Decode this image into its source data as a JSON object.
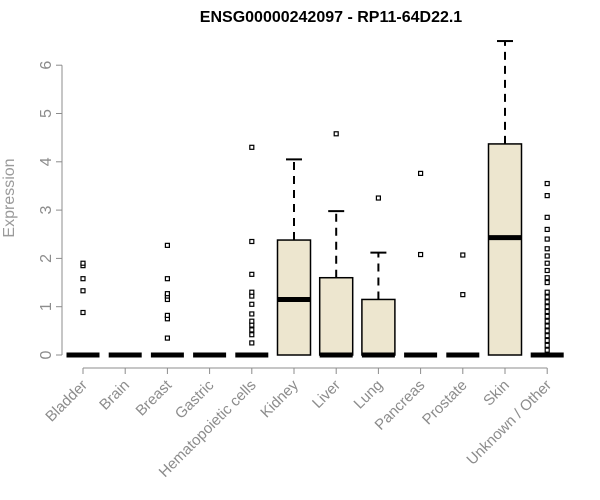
{
  "chart_data": {
    "type": "box",
    "title": "ENSG00000242097 - RP11-64D22.1",
    "xlabel": "",
    "ylabel": "Expression",
    "ylim": [
      0,
      6.6
    ],
    "yticks": [
      0,
      1,
      2,
      3,
      4,
      5,
      6
    ],
    "grid": false,
    "colors": {
      "box_fill": "#ede6cf",
      "box_stroke": "#000000",
      "axis": "#8c8c8c"
    },
    "categories": [
      "Bladder",
      "Brain",
      "Breast",
      "Gastric",
      "Hematopoietic cells",
      "Kidney",
      "Liver",
      "Lung",
      "Pancreas",
      "Prostate",
      "Skin",
      "Unknown / Other"
    ],
    "boxes": [
      {
        "category": "Bladder",
        "min": 0,
        "q1": 0,
        "median": 0,
        "q3": 0,
        "max": 0,
        "outliers": [
          0.88,
          1.33,
          1.58,
          1.85,
          1.9
        ]
      },
      {
        "category": "Brain",
        "min": 0,
        "q1": 0,
        "median": 0,
        "q3": 0,
        "max": 0,
        "outliers": []
      },
      {
        "category": "Breast",
        "min": 0,
        "q1": 0,
        "median": 0,
        "q3": 0,
        "max": 0,
        "outliers": [
          0.35,
          0.75,
          0.82,
          1.15,
          1.22,
          1.27,
          1.58,
          2.27
        ]
      },
      {
        "category": "Gastric",
        "min": 0,
        "q1": 0,
        "median": 0,
        "q3": 0,
        "max": 0,
        "outliers": []
      },
      {
        "category": "Hematopoietic cells",
        "min": 0,
        "q1": 0,
        "median": 0,
        "q3": 0,
        "max": 0,
        "outliers": [
          0.25,
          0.42,
          0.52,
          0.62,
          0.7,
          0.85,
          1.05,
          1.22,
          1.3,
          1.67,
          2.35,
          4.3
        ]
      },
      {
        "category": "Kidney",
        "min": 0,
        "q1": 0,
        "median": 1.15,
        "q3": 2.38,
        "max": 4.05,
        "outliers": []
      },
      {
        "category": "Liver",
        "min": 0,
        "q1": 0,
        "median": 0,
        "q3": 1.6,
        "max": 2.98,
        "outliers": [
          4.58
        ]
      },
      {
        "category": "Lung",
        "min": 0,
        "q1": 0,
        "median": 0,
        "q3": 1.15,
        "max": 2.12,
        "outliers": [
          3.25
        ]
      },
      {
        "category": "Pancreas",
        "min": 0,
        "q1": 0,
        "median": 0,
        "q3": 0,
        "max": 0,
        "outliers": [
          2.08,
          3.76
        ]
      },
      {
        "category": "Prostate",
        "min": 0,
        "q1": 0,
        "median": 0,
        "q3": 0,
        "max": 0,
        "outliers": [
          1.25,
          2.07
        ]
      },
      {
        "category": "Skin",
        "min": 0,
        "q1": 0,
        "median": 2.43,
        "q3": 4.37,
        "max": 6.5,
        "outliers": []
      },
      {
        "category": "Unknown / Other",
        "min": 0,
        "q1": 0,
        "median": 0,
        "q3": 0,
        "max": 0,
        "outliers": [
          0.1,
          0.2,
          0.3,
          0.4,
          0.5,
          0.6,
          0.7,
          0.8,
          0.9,
          1.0,
          1.1,
          1.2,
          1.3,
          1.5,
          1.6,
          1.75,
          1.9,
          2.05,
          2.2,
          2.4,
          2.6,
          2.85,
          3.3,
          3.55
        ]
      }
    ]
  }
}
